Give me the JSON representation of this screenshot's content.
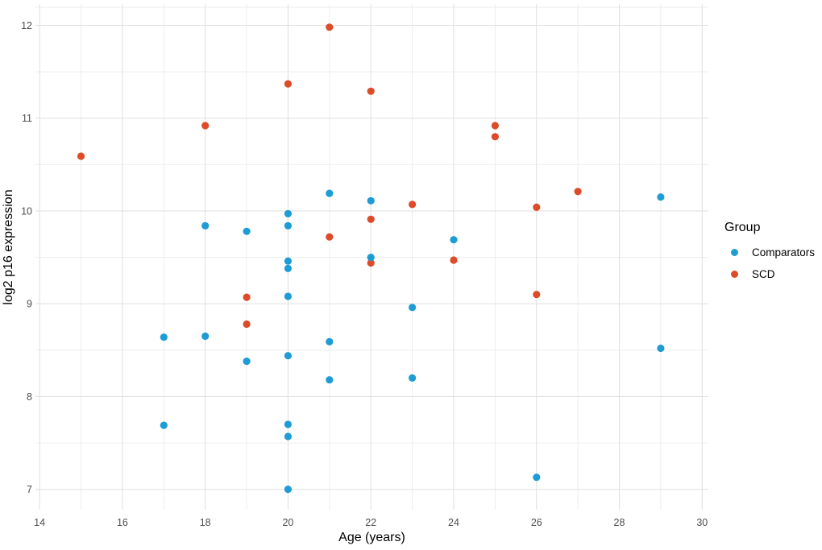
{
  "chart_data": {
    "type": "scatter",
    "title": "",
    "xlabel": "Age (years)",
    "ylabel": "log2 p16 expression",
    "xlim": [
      13.9,
      30.15
    ],
    "ylim": [
      6.78,
      12.23
    ],
    "x_ticks": [
      14,
      16,
      18,
      20,
      22,
      24,
      26,
      28,
      30
    ],
    "y_ticks": [
      7,
      8,
      9,
      10,
      11,
      12
    ],
    "x_minor_ticks": [
      15,
      17,
      19,
      21,
      23,
      25,
      27,
      29
    ],
    "y_minor_ticks": [
      7.5,
      8.5,
      9.5,
      10.5,
      11.5
    ],
    "grid": "major and minor, light gray on white panel",
    "legend": {
      "title": "Group",
      "position": "right",
      "entries": [
        {
          "label": "Comparators",
          "color": "#1E9CD6"
        },
        {
          "label": "SCD",
          "color": "#DD4B28"
        }
      ]
    },
    "series": [
      {
        "name": "SCD",
        "color": "#DD4B28",
        "points": [
          [
            15,
            10.59
          ],
          [
            18,
            10.92
          ],
          [
            19,
            9.07
          ],
          [
            19,
            8.78
          ],
          [
            20,
            11.37
          ],
          [
            21,
            11.98
          ],
          [
            21,
            9.72
          ],
          [
            22,
            11.29
          ],
          [
            22,
            9.91
          ],
          [
            22,
            9.44
          ],
          [
            23,
            10.07
          ],
          [
            24,
            9.47
          ],
          [
            25,
            10.92
          ],
          [
            25,
            10.8
          ],
          [
            26,
            10.04
          ],
          [
            26,
            9.1
          ],
          [
            27,
            10.21
          ]
        ]
      },
      {
        "name": "Comparators",
        "color": "#1E9CD6",
        "points": [
          [
            17,
            8.64
          ],
          [
            17,
            7.69
          ],
          [
            18,
            9.84
          ],
          [
            18,
            8.65
          ],
          [
            19,
            9.78
          ],
          [
            19,
            8.38
          ],
          [
            20,
            9.97
          ],
          [
            20,
            9.84
          ],
          [
            20,
            9.46
          ],
          [
            20,
            9.38
          ],
          [
            20,
            9.08
          ],
          [
            20,
            8.44
          ],
          [
            20,
            7.7
          ],
          [
            20,
            7.57
          ],
          [
            20,
            7.0
          ],
          [
            21,
            10.19
          ],
          [
            21,
            8.59
          ],
          [
            21,
            8.18
          ],
          [
            22,
            10.11
          ],
          [
            22,
            9.5
          ],
          [
            23,
            8.96
          ],
          [
            23,
            8.2
          ],
          [
            24,
            9.69
          ],
          [
            26,
            7.13
          ],
          [
            29,
            10.15
          ],
          [
            29,
            8.52
          ]
        ]
      }
    ],
    "point_radius_px": 4.6,
    "colors": {
      "background": "#ffffff",
      "major_grid": "#e2e2e2",
      "minor_grid": "#ececec",
      "tick_label": "#4d4d4d",
      "title_text": "#000000"
    }
  }
}
